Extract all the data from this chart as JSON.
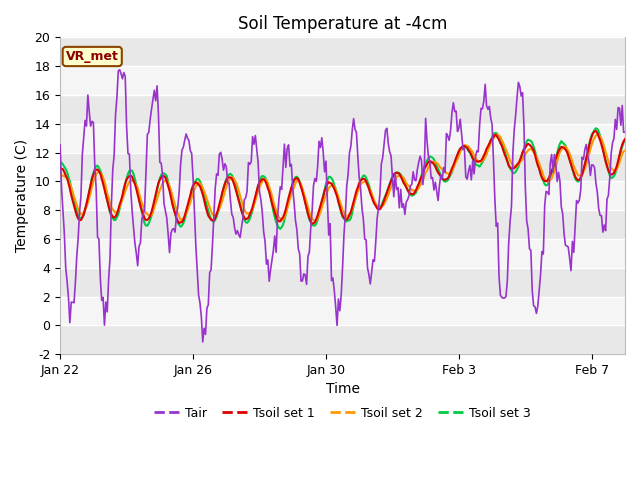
{
  "title": "Soil Temperature at -4cm",
  "ylabel": "Temperature (C)",
  "xlabel": "Time",
  "ylim": [
    -2,
    20
  ],
  "annotation": "VR_met",
  "line_colors": {
    "Tair": "#9933cc",
    "Tsoil set 1": "#dd0000",
    "Tsoil set 2": "#ff9900",
    "Tsoil set 3": "#00cc44"
  },
  "line_widths": {
    "Tair": 1.2,
    "Tsoil set 1": 1.5,
    "Tsoil set 2": 1.5,
    "Tsoil set 3": 1.5
  },
  "background_color": "#ffffff",
  "plot_bg_color": "#ffffff",
  "band_color_even": "#e8e8e8",
  "band_color_odd": "#f5f5f5",
  "title_fontsize": 12,
  "label_fontsize": 10,
  "tick_fontsize": 9,
  "xtick_labels": [
    "Jan 22",
    "Jan 26",
    "Jan 30",
    "Feb 3",
    "Feb 7"
  ],
  "ytick_labels": [
    "-2",
    "0",
    "2",
    "4",
    "6",
    "8",
    "10",
    "12",
    "14",
    "16",
    "18",
    "20"
  ],
  "ytick_positions": [
    -2,
    0,
    2,
    4,
    6,
    8,
    10,
    12,
    14,
    16,
    18,
    20
  ]
}
